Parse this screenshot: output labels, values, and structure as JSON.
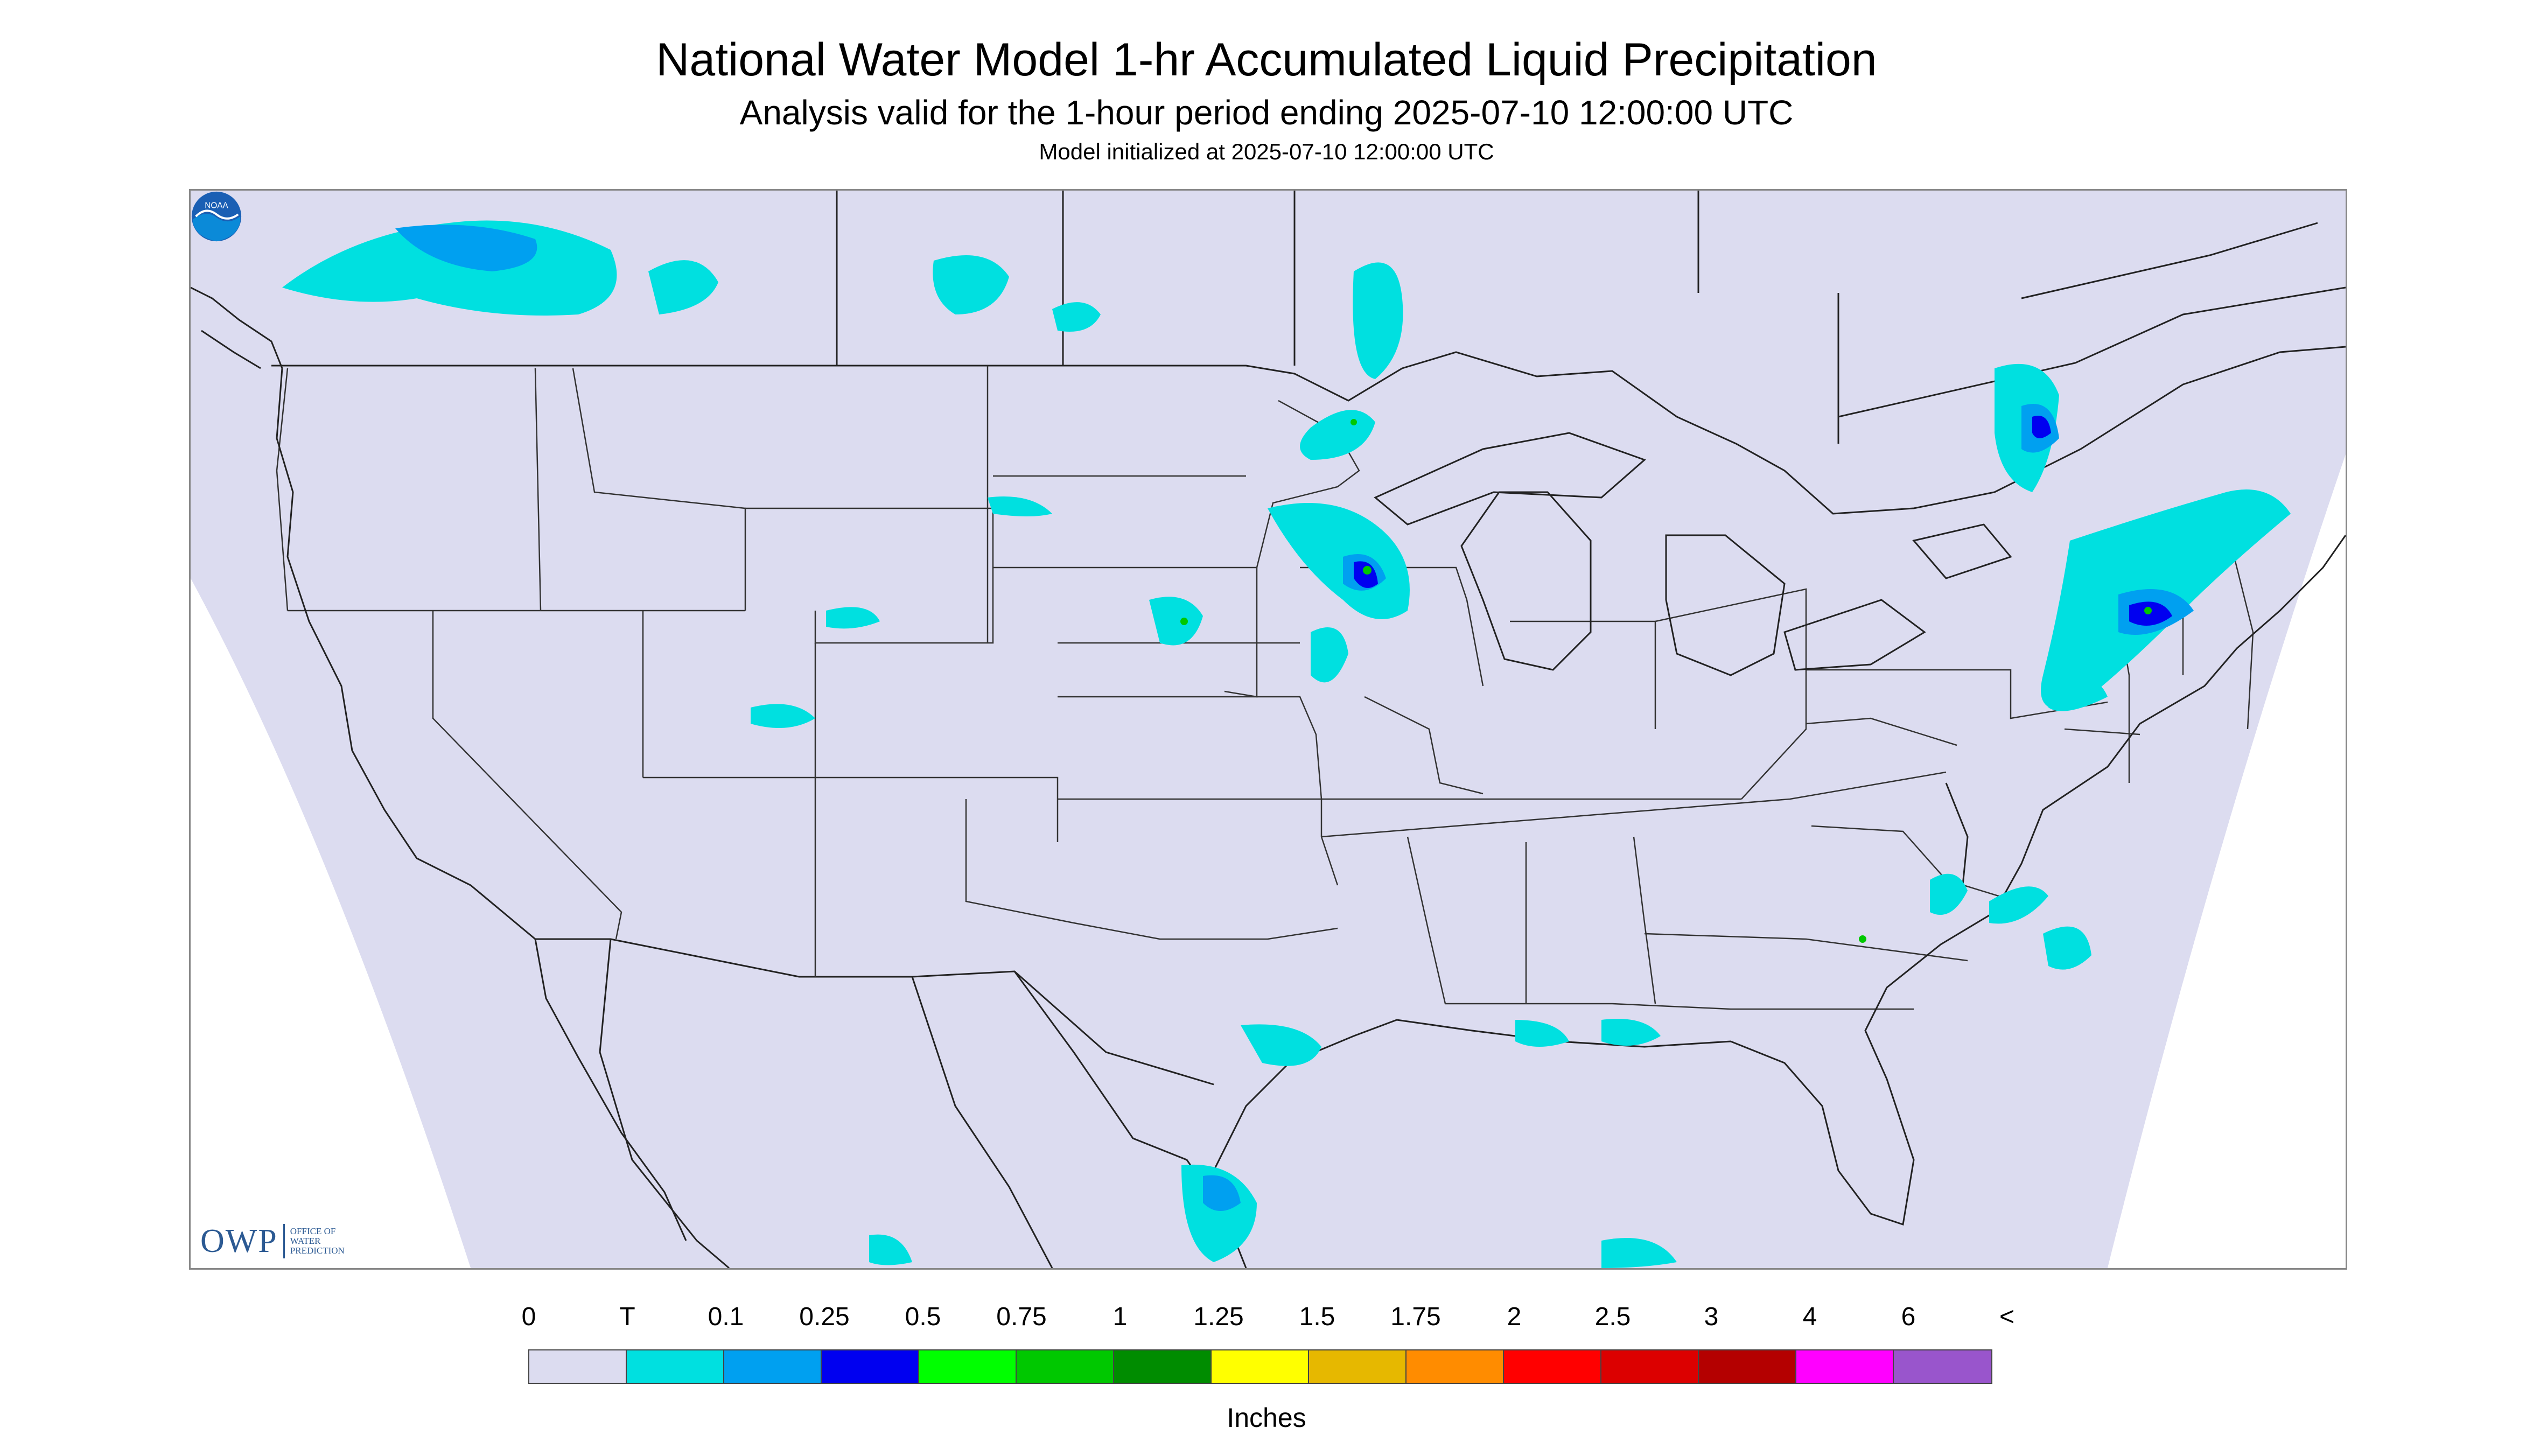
{
  "title": "National Water Model 1-hr Accumulated Liquid Precipitation",
  "subtitle": "Analysis valid for the 1-hour period ending 2025-07-10 12:00:00 UTC",
  "init_text": "Model initialized at 2025-07-10 12:00:00 UTC",
  "logo": {
    "mark": "OWP",
    "line1": "OFFICE OF",
    "line2": "WATER",
    "line3": "PREDICTION",
    "noaa": "NOAA"
  },
  "legend": {
    "labels": [
      "0",
      "T",
      "0.1",
      "0.25",
      "0.5",
      "0.75",
      "1",
      "1.25",
      "1.5",
      "1.75",
      "2",
      "2.5",
      "3",
      "4",
      "6",
      "<"
    ],
    "colors": [
      "#dcdcf0",
      "#00e0e0",
      "#00a0f0",
      "#0000f0",
      "#00ff00",
      "#00c800",
      "#008c00",
      "#ffff00",
      "#e6b800",
      "#ff8c00",
      "#ff0000",
      "#dc0000",
      "#b40000",
      "#ff00ff",
      "#9955cc"
    ],
    "units": "Inches"
  },
  "map": {
    "outside_color": "#ffffff",
    "domain_color": "#dcdcf0",
    "line_color": "#222222"
  }
}
